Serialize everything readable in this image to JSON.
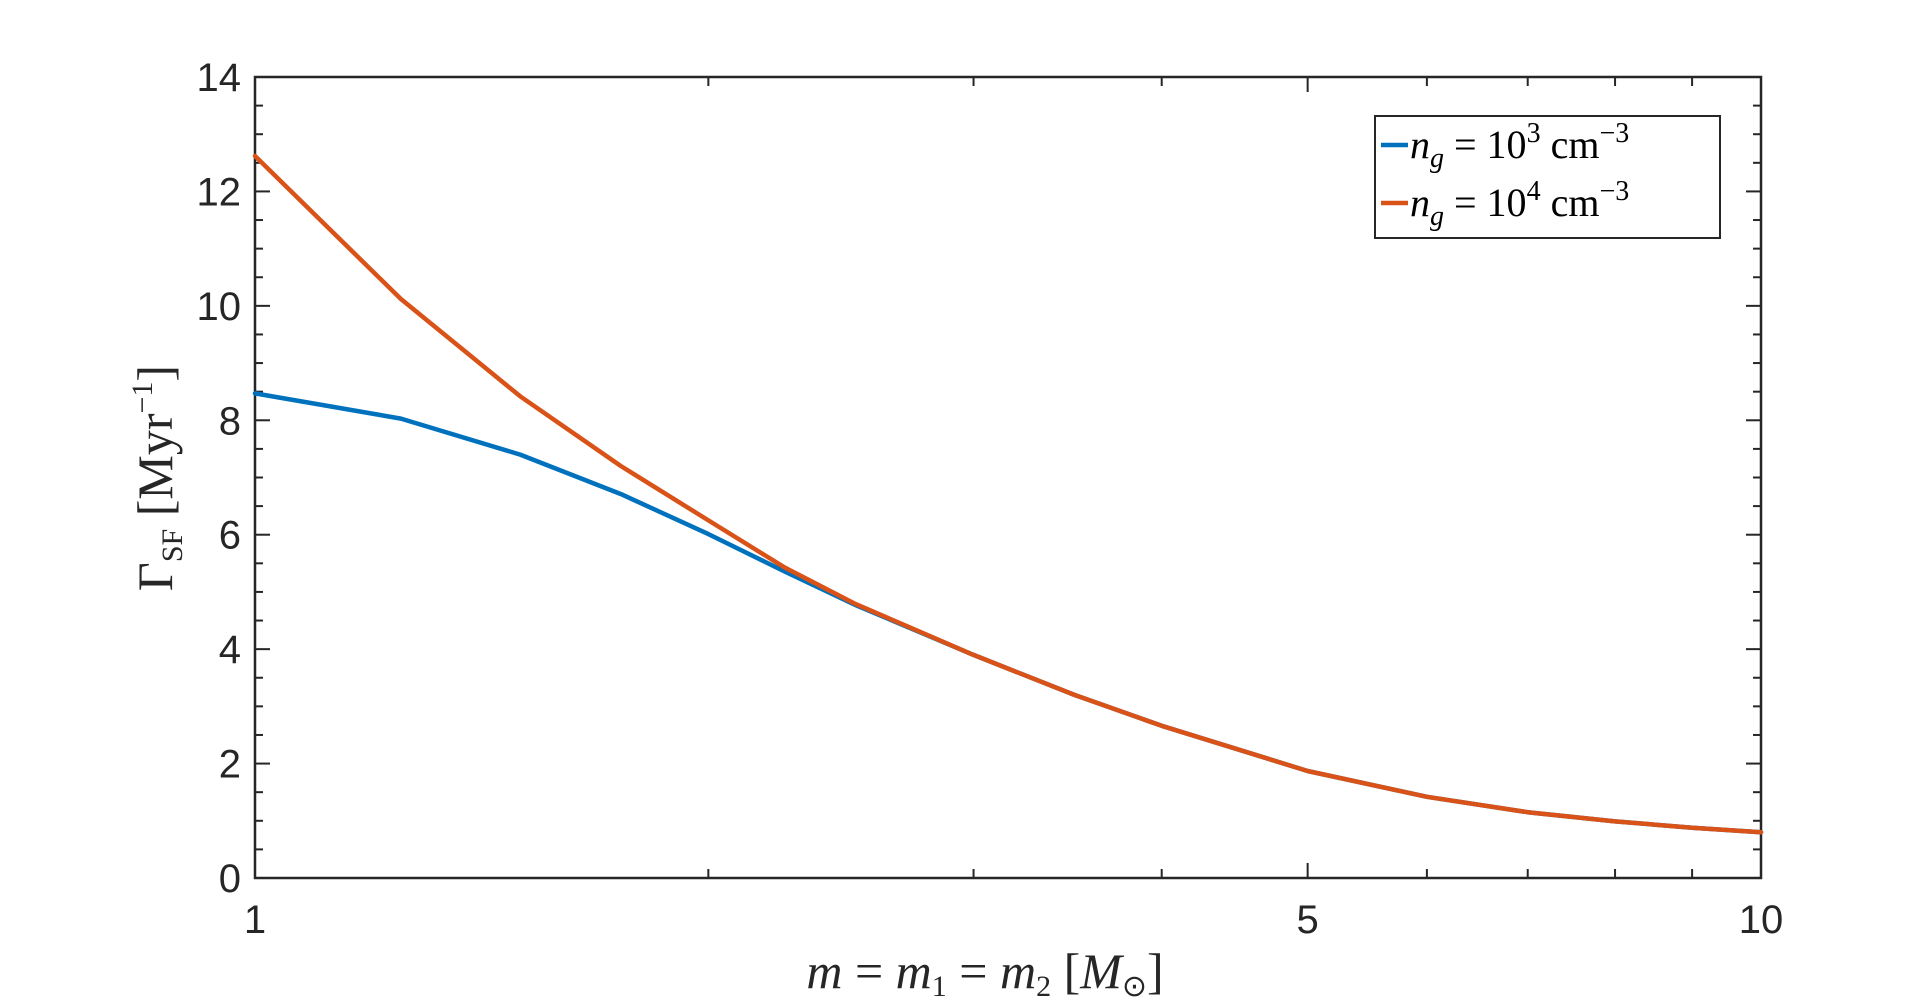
{
  "chart_data": {
    "type": "line",
    "xscale": "log",
    "xlim": [
      1,
      10
    ],
    "ylim": [
      0,
      14
    ],
    "grid": false,
    "legend_position": "top-right",
    "xlabel": "m = m₁ = m₂ [M⊙]",
    "ylabel": "Γ_SF [Myr⁻¹]",
    "x_ticks": [
      1,
      5,
      10
    ],
    "x_tick_labels": [
      "1",
      "5",
      "10"
    ],
    "y_ticks": [
      0,
      2,
      4,
      6,
      8,
      10,
      12,
      14
    ],
    "y_tick_labels": [
      "0",
      "2",
      "4",
      "6",
      "8",
      "10",
      "12",
      "14"
    ],
    "series": [
      {
        "name": "n_g = 10³ cm⁻³",
        "color": "#0072BD",
        "x": [
          1,
          1.25,
          1.5,
          1.75,
          2,
          2.25,
          2.5,
          3,
          3.5,
          4,
          5,
          6,
          7,
          8,
          9,
          10
        ],
        "y": [
          8.47,
          8.03,
          7.4,
          6.71,
          6.01,
          5.35,
          4.78,
          3.9,
          3.2,
          2.66,
          1.87,
          1.42,
          1.15,
          0.99,
          0.88,
          0.8
        ]
      },
      {
        "name": "n_g = 10⁴ cm⁻³",
        "color": "#D95319",
        "x": [
          1,
          1.25,
          1.5,
          1.75,
          2,
          2.25,
          2.5,
          3,
          3.5,
          4,
          5,
          6,
          7,
          8,
          9,
          10
        ],
        "y": [
          12.62,
          10.12,
          8.42,
          7.2,
          6.25,
          5.42,
          4.8,
          3.9,
          3.2,
          2.66,
          1.87,
          1.42,
          1.15,
          0.99,
          0.88,
          0.8
        ]
      }
    ]
  }
}
